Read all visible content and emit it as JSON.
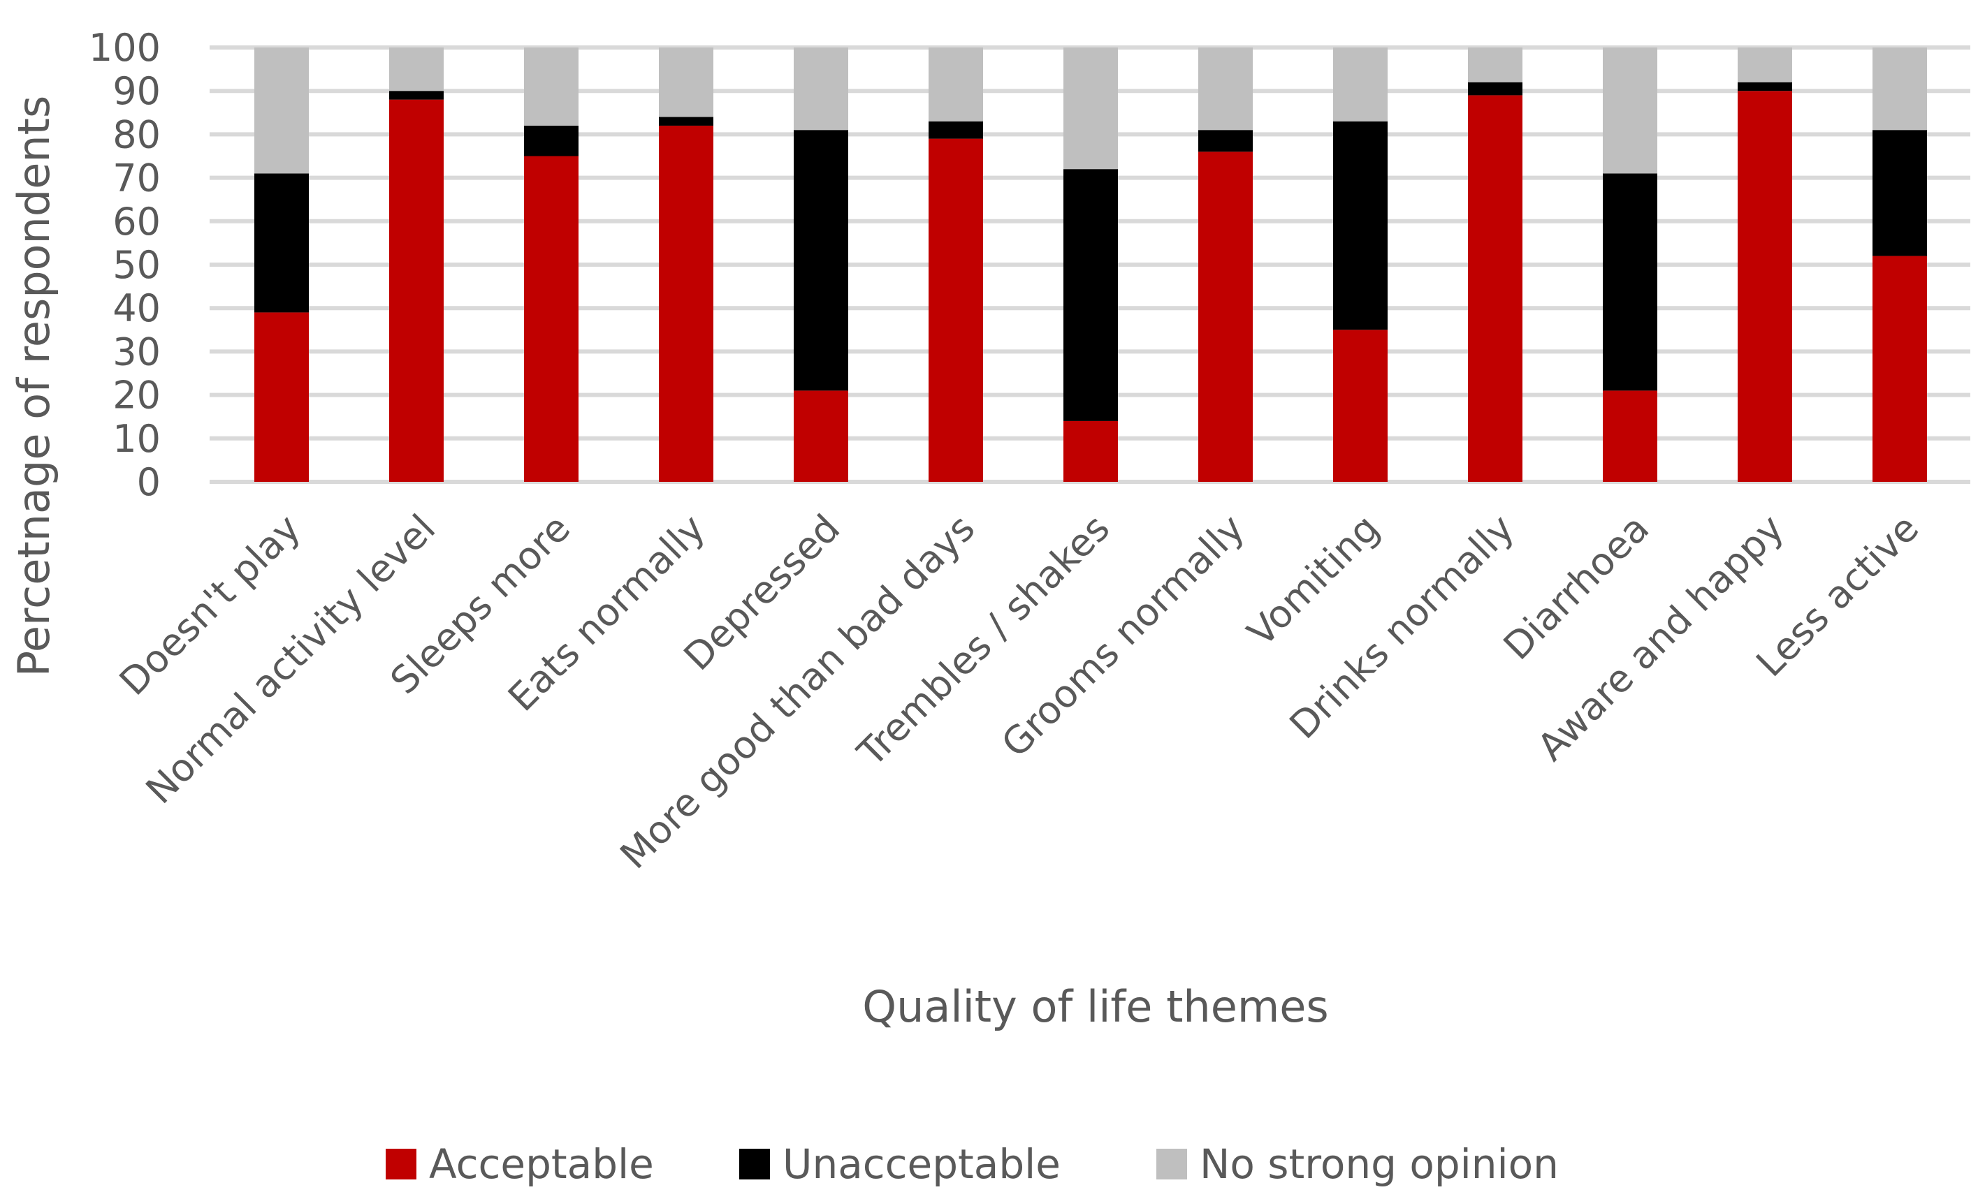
{
  "chart_data": {
    "type": "bar",
    "stacked": true,
    "categories": [
      "Doesn't play",
      "Normal activity level",
      "Sleeps more",
      "Eats normally",
      "Depressed",
      "More good than bad days",
      "Trembles / shakes",
      "Grooms normally",
      "Vomiting",
      "Drinks normally",
      "Diarrhoea",
      "Aware and happy",
      "Less active"
    ],
    "series": [
      {
        "name": "Acceptable",
        "color": "#c00000",
        "values": [
          39,
          88,
          75,
          82,
          21,
          79,
          14,
          76,
          35,
          89,
          21,
          90,
          52
        ]
      },
      {
        "name": "Unacceptable",
        "color": "#000000",
        "values": [
          32,
          2,
          7,
          2,
          60,
          4,
          58,
          5,
          48,
          3,
          50,
          2,
          29
        ]
      },
      {
        "name": "No strong opinion",
        "color": "#bfbfbf",
        "values": [
          29,
          10,
          18,
          16,
          19,
          17,
          28,
          19,
          17,
          8,
          29,
          8,
          19
        ]
      }
    ],
    "xlabel": "Quality of life themes",
    "ylabel": "Percetnage of respondents",
    "ylim": [
      0,
      100
    ],
    "yticks": [
      0,
      10,
      20,
      30,
      40,
      50,
      60,
      70,
      80,
      90,
      100
    ],
    "grid": true,
    "legend_position": "bottom"
  }
}
